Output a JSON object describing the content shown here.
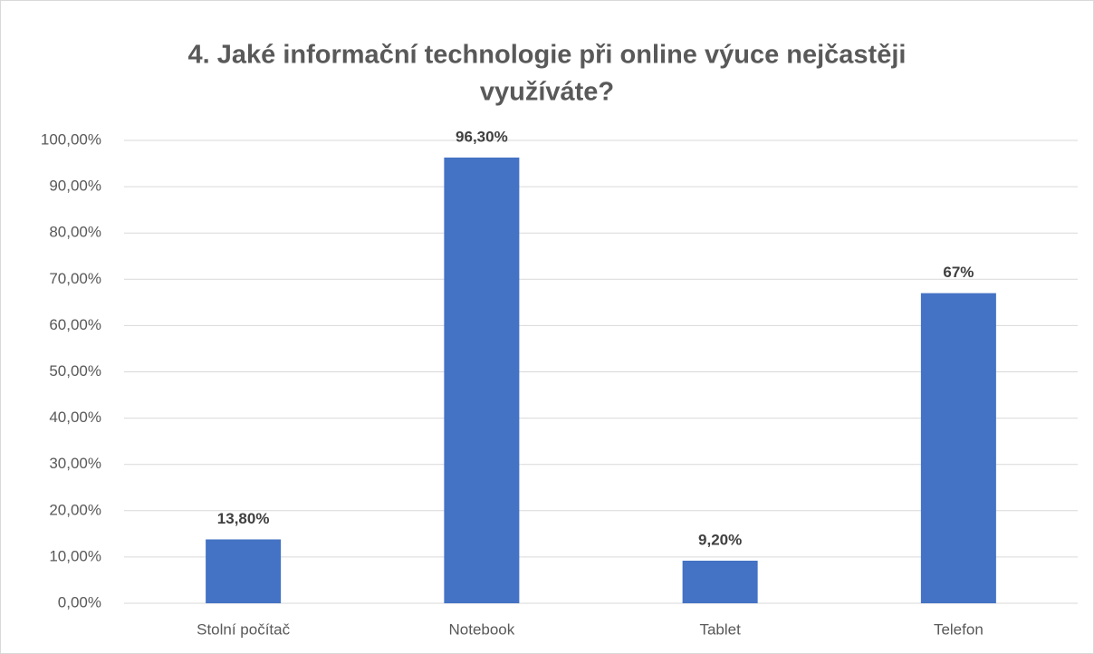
{
  "chart_data": {
    "type": "bar",
    "title": [
      "4. Jaké informační technologie při online výuce nejčastěji",
      "využíváte?"
    ],
    "categories": [
      "Stolní počítač",
      "Notebook",
      "Tablet",
      "Telefon"
    ],
    "values": [
      13.8,
      96.3,
      9.2,
      67
    ],
    "value_labels": [
      "13,80%",
      "96,30%",
      "9,20%",
      "67%"
    ],
    "color": "#4472c4",
    "ylim": [
      0,
      100
    ],
    "yticks": [
      {
        "value": 0,
        "label": "0,00%"
      },
      {
        "value": 10,
        "label": "10,00%"
      },
      {
        "value": 20,
        "label": "20,00%"
      },
      {
        "value": 30,
        "label": "30,00%"
      },
      {
        "value": 40,
        "label": "40,00%"
      },
      {
        "value": 50,
        "label": "50,00%"
      },
      {
        "value": 60,
        "label": "60,00%"
      },
      {
        "value": 70,
        "label": "70,00%"
      },
      {
        "value": 80,
        "label": "80,00%"
      },
      {
        "value": 90,
        "label": "90,00%"
      },
      {
        "value": 100,
        "label": "100,00%"
      }
    ],
    "grid": true
  }
}
